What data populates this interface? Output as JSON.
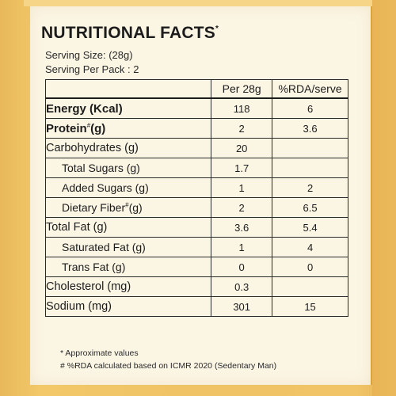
{
  "label": {
    "title": "NUTRITIONAL FACTS",
    "title_mark": "*",
    "serving_size": "Serving Size: (28g)",
    "serving_per_pack": "Serving Per Pack : 2"
  },
  "table": {
    "headers": {
      "nutrient": "",
      "per": "Per 28g",
      "rda": "%RDA/serve"
    },
    "rows": [
      {
        "nutrient": "Energy (Kcal)",
        "per": "118",
        "rda": "6"
      },
      {
        "nutrient": "Protein",
        "mark": "#",
        "unit": "(g)",
        "per": "2",
        "rda": "3.6"
      },
      {
        "nutrient": "Carbohydrates (g)",
        "per": "20",
        "rda": ""
      },
      {
        "nutrient": "Total Sugars (g)",
        "per": "1.7",
        "rda": ""
      },
      {
        "nutrient": "Added Sugars (g)",
        "per": "1",
        "rda": "2"
      },
      {
        "nutrient": "Dietary Fiber",
        "mark": "#",
        "unit": "(g)",
        "per": "2",
        "rda": "6.5"
      },
      {
        "nutrient": "Total Fat (g)",
        "per": "3.6",
        "rda": "5.4"
      },
      {
        "nutrient": "Saturated Fat (g)",
        "per": "1",
        "rda": "4"
      },
      {
        "nutrient": "Trans Fat (g)",
        "per": "0",
        "rda": "0"
      },
      {
        "nutrient": "Cholesterol (mg)",
        "per": "0.3",
        "rda": ""
      },
      {
        "nutrient": "Sodium (mg)",
        "per": "301",
        "rda": "15"
      }
    ]
  },
  "footnotes": {
    "approx": "* Approximate values",
    "rda_note": "# %RDA calculated based on ICMR 2020 (Sedentary Man)"
  },
  "colors": {
    "packaging": "#efc366",
    "panel": "#fbf5e4",
    "ink": "#1c1c1c"
  }
}
